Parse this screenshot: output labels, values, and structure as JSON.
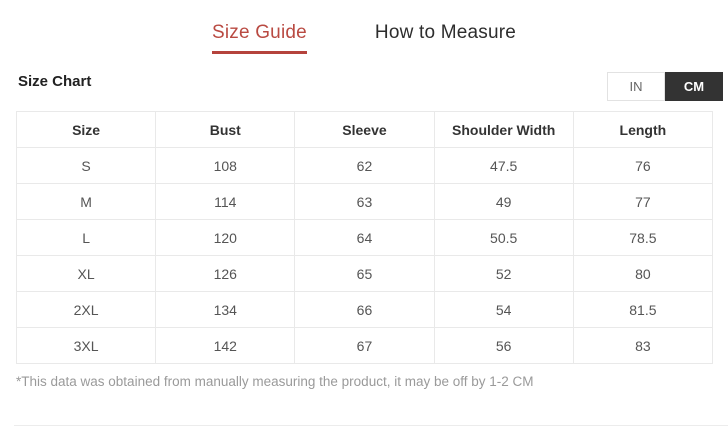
{
  "tabs": {
    "size_guide": "Size Guide",
    "how_to_measure": "How to Measure",
    "active": "Size Guide"
  },
  "section": {
    "title": "Size Chart"
  },
  "unit_toggle": {
    "in_label": "IN",
    "cm_label": "CM",
    "active": "CM"
  },
  "table": {
    "headers": [
      "Size",
      "Bust",
      "Sleeve",
      "Shoulder Width",
      "Length"
    ],
    "rows": [
      [
        "S",
        "108",
        "62",
        "47.5",
        "76"
      ],
      [
        "M",
        "114",
        "63",
        "49",
        "77"
      ],
      [
        "L",
        "120",
        "64",
        "50.5",
        "78.5"
      ],
      [
        "XL",
        "126",
        "65",
        "52",
        "80"
      ],
      [
        "2XL",
        "134",
        "66",
        "54",
        "81.5"
      ],
      [
        "3XL",
        "142",
        "67",
        "56",
        "83"
      ]
    ]
  },
  "footnote": "*This data was obtained from manually measuring the product, it may be off by 1-2 CM",
  "colors": {
    "accent_red": "#b94a42",
    "accent_red_underline": "#b5433c",
    "active_toggle_bg": "#333333",
    "table_border": "#e9e9e9",
    "footnote_gray": "#9a9a9a"
  }
}
